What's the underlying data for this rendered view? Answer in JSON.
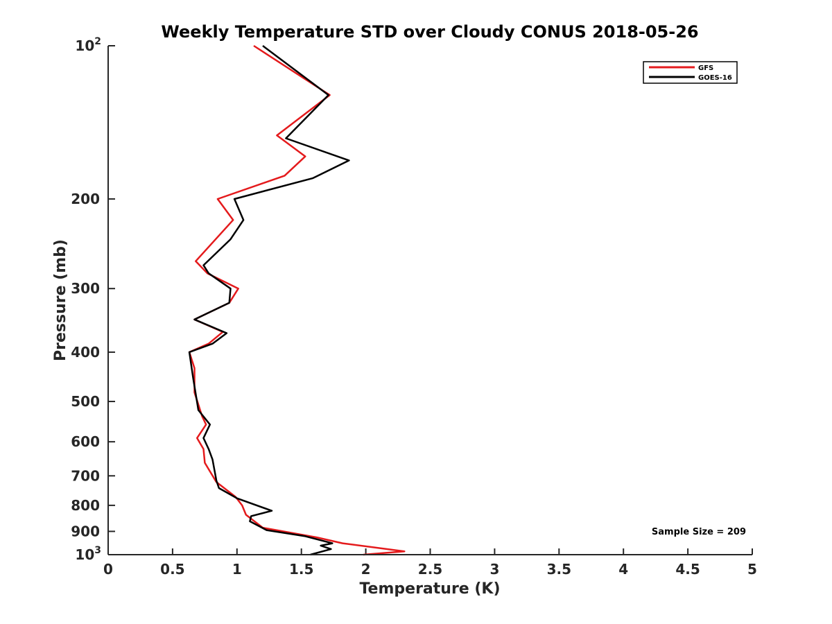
{
  "chart_data": {
    "type": "line",
    "title": "Weekly Temperature STD over Cloudy CONUS 2018-05-26",
    "xlabel": "Temperature (K)",
    "ylabel": "Pressure (mb)",
    "xlim": [
      0,
      5
    ],
    "ylim": [
      100,
      1000
    ],
    "y_scale": "log",
    "y_reversed": true,
    "grid": false,
    "legend_position": "top-right",
    "x_ticks": [
      {
        "value": 0,
        "label": "0"
      },
      {
        "value": 0.5,
        "label": "0.5"
      },
      {
        "value": 1,
        "label": "1"
      },
      {
        "value": 1.5,
        "label": "1.5"
      },
      {
        "value": 2,
        "label": "2"
      },
      {
        "value": 2.5,
        "label": "2.5"
      },
      {
        "value": 3,
        "label": "3"
      },
      {
        "value": 3.5,
        "label": "3.5"
      },
      {
        "value": 4,
        "label": "4"
      },
      {
        "value": 4.5,
        "label": "4.5"
      },
      {
        "value": 5,
        "label": "5"
      }
    ],
    "y_ticks": [
      {
        "value": 100,
        "base": "10",
        "exp": "2"
      },
      {
        "value": 200,
        "label": "200"
      },
      {
        "value": 300,
        "label": "300"
      },
      {
        "value": 400,
        "label": "400"
      },
      {
        "value": 500,
        "label": "500"
      },
      {
        "value": 600,
        "label": "600"
      },
      {
        "value": 700,
        "label": "700"
      },
      {
        "value": 800,
        "label": "800"
      },
      {
        "value": 900,
        "label": "900"
      },
      {
        "value": 1000,
        "base": "10",
        "exp": "3"
      }
    ],
    "annotation": "Sample Size = 209",
    "series": [
      {
        "name": "GFS",
        "color": "#e41a1c",
        "points": [
          [
            1.13,
            100
          ],
          [
            1.72,
            125
          ],
          [
            1.31,
            150
          ],
          [
            1.53,
            165
          ],
          [
            1.37,
            180
          ],
          [
            0.85,
            200
          ],
          [
            0.97,
            220
          ],
          [
            0.68,
            265
          ],
          [
            0.77,
            280
          ],
          [
            1.01,
            300
          ],
          [
            0.94,
            320
          ],
          [
            0.67,
            345
          ],
          [
            0.89,
            365
          ],
          [
            0.78,
            385
          ],
          [
            0.63,
            400
          ],
          [
            0.67,
            430
          ],
          [
            0.67,
            480
          ],
          [
            0.73,
            535
          ],
          [
            0.76,
            555
          ],
          [
            0.69,
            590
          ],
          [
            0.74,
            620
          ],
          [
            0.75,
            660
          ],
          [
            0.84,
            720
          ],
          [
            0.99,
            770
          ],
          [
            1.04,
            800
          ],
          [
            1.07,
            835
          ],
          [
            1.2,
            885
          ],
          [
            1.62,
            925
          ],
          [
            1.82,
            950
          ],
          [
            2.3,
            985
          ],
          [
            1.98,
            1000
          ]
        ]
      },
      {
        "name": "GOES-16",
        "color": "#000000",
        "points": [
          [
            1.2,
            100
          ],
          [
            1.71,
            125
          ],
          [
            1.38,
            152
          ],
          [
            1.87,
            168
          ],
          [
            1.59,
            182
          ],
          [
            0.98,
            200
          ],
          [
            1.05,
            220
          ],
          [
            0.95,
            240
          ],
          [
            0.74,
            270
          ],
          [
            0.78,
            280
          ],
          [
            0.95,
            300
          ],
          [
            0.94,
            320
          ],
          [
            0.67,
            345
          ],
          [
            0.92,
            367
          ],
          [
            0.81,
            385
          ],
          [
            0.63,
            400
          ],
          [
            0.66,
            450
          ],
          [
            0.7,
            520
          ],
          [
            0.79,
            555
          ],
          [
            0.74,
            590
          ],
          [
            0.78,
            620
          ],
          [
            0.81,
            650
          ],
          [
            0.84,
            715
          ],
          [
            0.86,
            740
          ],
          [
            1.0,
            775
          ],
          [
            1.27,
            820
          ],
          [
            1.11,
            840
          ],
          [
            1.1,
            860
          ],
          [
            1.23,
            895
          ],
          [
            1.53,
            920
          ],
          [
            1.74,
            950
          ],
          [
            1.65,
            960
          ],
          [
            1.73,
            975
          ],
          [
            1.57,
            1000
          ]
        ]
      }
    ]
  }
}
